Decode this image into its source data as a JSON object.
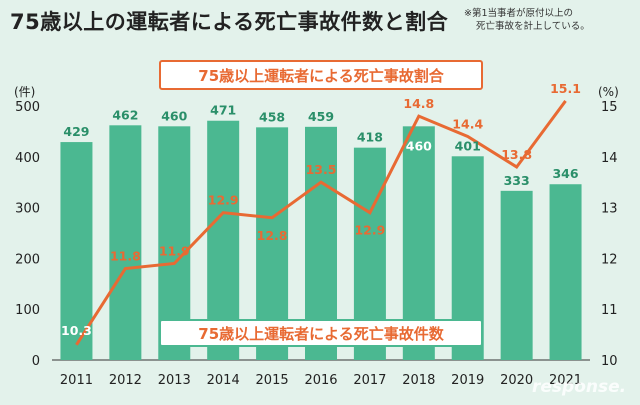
{
  "title": "75歳以上の運転者による死亡事故件数と割合",
  "note": [
    "※第1当事者が原付以上の",
    "死亡事故を計上している。"
  ],
  "watermark": "response.",
  "colors": {
    "bar": "#4bb891",
    "line": "#e86a33",
    "background": "#e3f2eb"
  },
  "chart_data": {
    "type": "bar+line",
    "categories": [
      "2011",
      "2012",
      "2013",
      "2014",
      "2015",
      "2016",
      "2017",
      "2018",
      "2019",
      "2020",
      "2021"
    ],
    "series": [
      {
        "name": "75歳以上運転者による死亡事故件数",
        "type": "bar",
        "axis": "left",
        "values": [
          429,
          462,
          460,
          471,
          458,
          459,
          418,
          460,
          401,
          333,
          346
        ]
      },
      {
        "name": "75歳以上運転者による死亡事故割合",
        "type": "line",
        "axis": "right",
        "values": [
          10.3,
          11.8,
          11.9,
          12.9,
          12.8,
          13.5,
          12.9,
          14.8,
          14.4,
          13.8,
          15.1
        ]
      }
    ],
    "left_axis": {
      "unit": "(件)",
      "range": [
        0,
        500
      ],
      "ticks": [
        "0",
        "100",
        "200",
        "300",
        "400",
        "500"
      ]
    },
    "right_axis": {
      "unit": "(%)",
      "range": [
        10,
        15
      ],
      "ticks": [
        "10",
        "11",
        "12",
        "13",
        "14",
        "15"
      ]
    },
    "grid": false,
    "legend": "inline labels"
  }
}
